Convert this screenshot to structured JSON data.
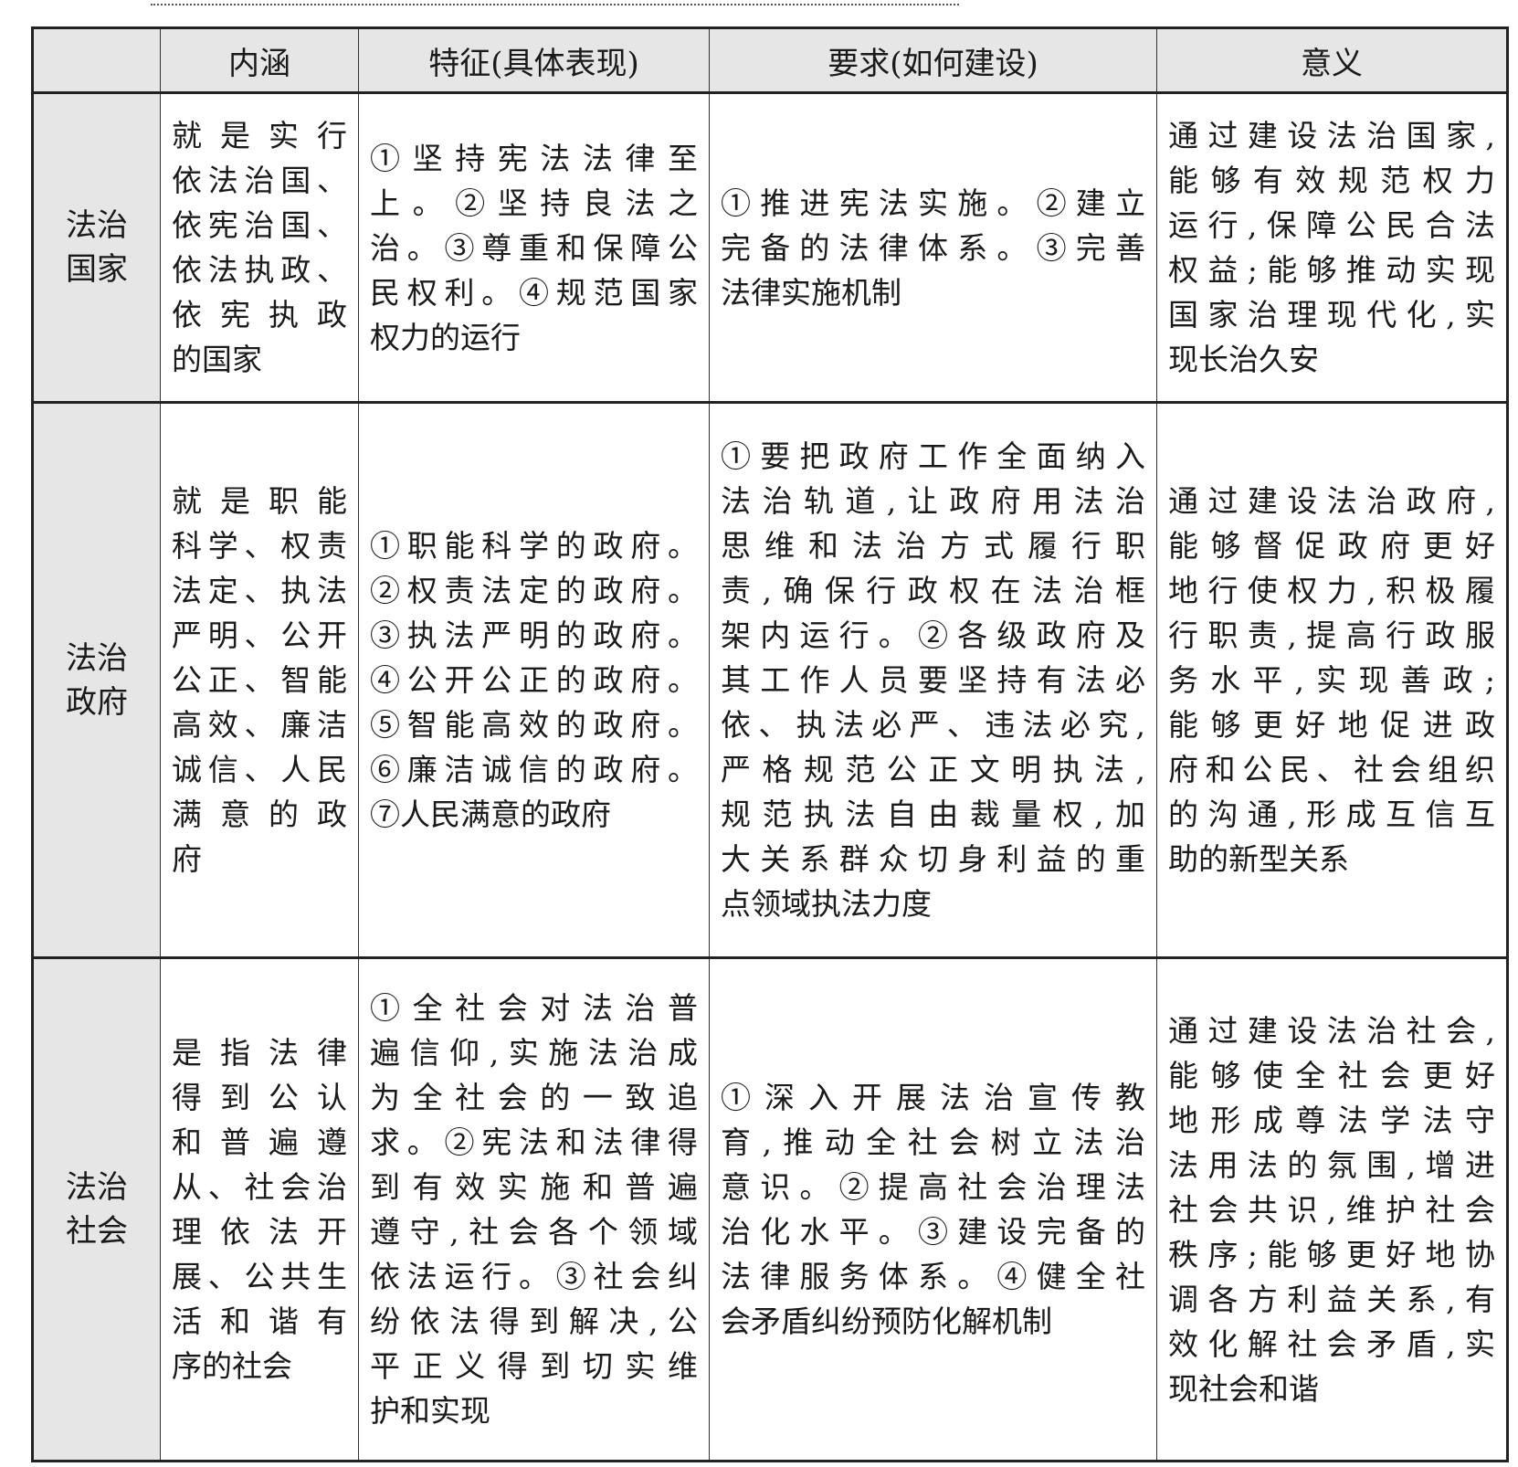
{
  "headers": [
    "",
    "内涵",
    "特征(具体表现)",
    "要求(如何建设)",
    "意义"
  ],
  "rows": [
    {
      "label": [
        "法治",
        "国家"
      ],
      "cells": [
        [
          "就是实行",
          "依法治国、",
          "依宪治国、",
          "依法执政、",
          "依宪执政",
          "的国家"
        ],
        [
          "①坚持宪法法律至",
          "上。②坚持良法之",
          "治。③尊重和保障公",
          "民权利。④规范国家",
          "权力的运行"
        ],
        [
          "①推进宪法实施。②建立",
          "完备的法律体系。③完善",
          "法律实施机制"
        ],
        [
          "通过建设法治国家,",
          "能够有效规范权力",
          "运行,保障公民合法",
          "权益;能够推动实现",
          "国家治理现代化,实",
          "现长治久安"
        ]
      ]
    },
    {
      "label": [
        "法治",
        "政府"
      ],
      "cells": [
        [
          "就是职能",
          "科学、权责",
          "法定、执法",
          "严明、公开",
          "公正、智能",
          "高效、廉洁",
          "诚信、人民",
          "满意的政",
          "府"
        ],
        [
          "①职能科学的政府。",
          "②权责法定的政府。",
          "③执法严明的政府。",
          "④公开公正的政府。",
          "⑤智能高效的政府。",
          "⑥廉洁诚信的政府。",
          "⑦人民满意的政府"
        ],
        [
          "①要把政府工作全面纳入",
          "法治轨道,让政府用法治",
          "思维和法治方式履行职",
          "责,确保行政权在法治框",
          "架内运行。②各级政府及",
          "其工作人员要坚持有法必",
          "依、执法必严、违法必究,",
          "严格规范公正文明执法,",
          "规范执法自由裁量权,加",
          "大关系群众切身利益的重",
          "点领域执法力度"
        ],
        [
          "通过建设法治政府,",
          "能够督促政府更好",
          "地行使权力,积极履",
          "行职责,提高行政服",
          "务水平,实现善政;",
          "能够更好地促进政",
          "府和公民、社会组织",
          "的沟通,形成互信互",
          "助的新型关系"
        ]
      ]
    },
    {
      "label": [
        "法治",
        "社会"
      ],
      "cells": [
        [
          "是指法律",
          "得到公认",
          "和普遍遵",
          "从、社会治",
          "理依法开",
          "展、公共生",
          "活和谐有",
          "序的社会"
        ],
        [
          "①全社会对法治普",
          "遍信仰,实施法治成",
          "为全社会的一致追",
          "求。②宪法和法律得",
          "到有效实施和普遍",
          "遵守,社会各个领域",
          "依法运行。③社会纠",
          "纷依法得到解决,公",
          "平正义得到切实维",
          "护和实现"
        ],
        [
          "①深入开展法治宣传教",
          "育,推动全社会树立法治",
          "意识。②提高社会治理法",
          "治化水平。③建设完备的",
          "法律服务体系。④健全社",
          "会矛盾纠纷预防化解机制"
        ],
        [
          "通过建设法治社会,",
          "能够使全社会更好",
          "地形成尊法学法守",
          "法用法的氛围,增进",
          "社会共识,维护社会",
          "秩序;能够更好地协",
          "调各方利益关系,有",
          "效化解社会矛盾,实",
          "现社会和谐"
        ]
      ]
    }
  ]
}
